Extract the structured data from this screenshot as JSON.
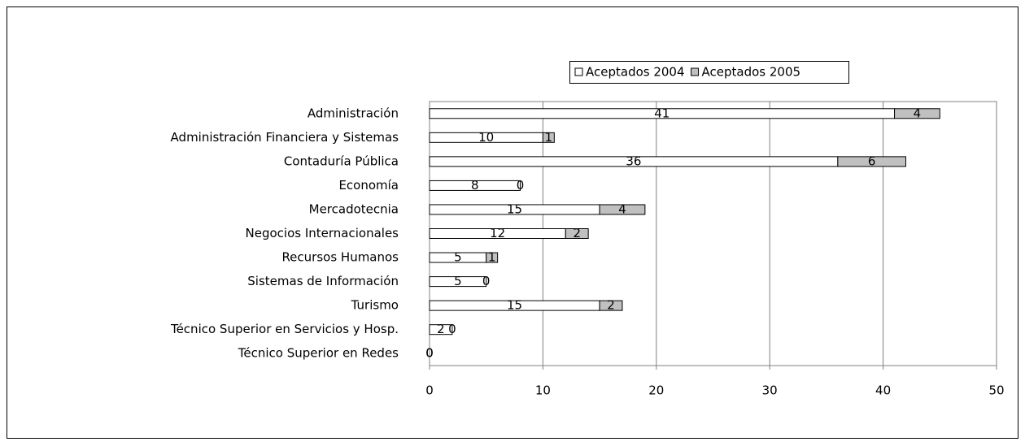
{
  "chart_data": {
    "type": "stacked-bar-horizontal",
    "categories": [
      "Administración",
      "Administración Financiera y Sistemas",
      "Contaduría Pública",
      "Economía",
      "Mercadotecnia",
      "Negocios Internacionales",
      "Recursos Humanos",
      "Sistemas de Información",
      "Turismo",
      "Técnico Superior en Servicios y Hosp.",
      "Técnico Superior en Redes"
    ],
    "series": [
      {
        "name": "Aceptados 2004",
        "color": "#ffffff",
        "values": [
          41,
          10,
          36,
          8,
          15,
          12,
          5,
          5,
          15,
          2,
          0
        ]
      },
      {
        "name": "Aceptados 2005",
        "color": "#c0c0c0",
        "values": [
          4,
          1,
          6,
          0,
          4,
          2,
          1,
          0,
          2,
          0,
          0
        ]
      }
    ],
    "xlim": [
      0,
      50
    ],
    "xticks": [
      0,
      10,
      20,
      30,
      40,
      50
    ],
    "grid": true,
    "legend": "top"
  }
}
